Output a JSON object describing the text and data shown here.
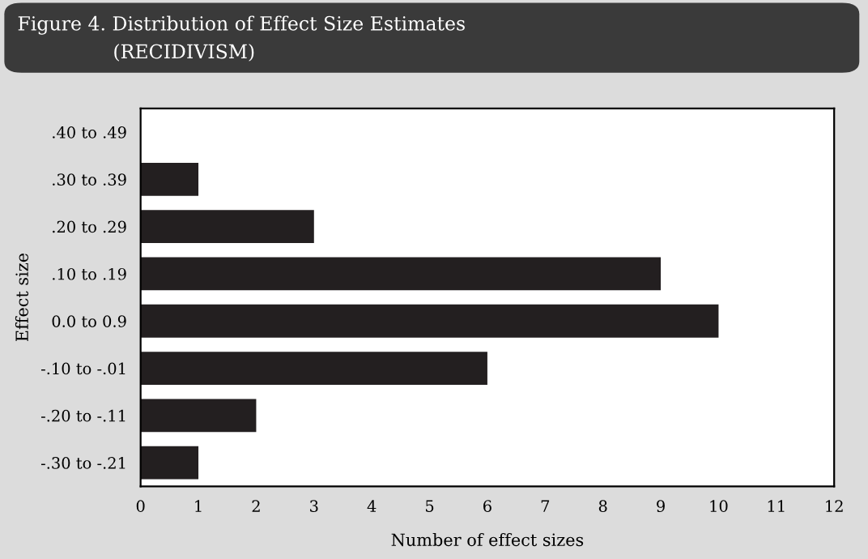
{
  "chart_data": {
    "type": "bar",
    "orientation": "horizontal",
    "title": "Figure 4. Distribution of Effect Size Estimates",
    "subtitle": "(RECIDIVISM)",
    "xlabel": "Number of effect sizes",
    "ylabel": "Effect size",
    "categories": [
      ".40 to .49",
      ".30 to .39",
      ".20 to .29",
      ".10 to .19",
      "0.0 to 0.9",
      "-.10 to -.01",
      "-.20 to -.11",
      "-.30 to -.21"
    ],
    "values": [
      0,
      1,
      3,
      9,
      10,
      6,
      2,
      1
    ],
    "color": "#231f20",
    "xlim": [
      0,
      12
    ],
    "xticks": [
      0,
      1,
      2,
      3,
      4,
      5,
      6,
      7,
      8,
      9,
      10,
      11,
      12
    ],
    "grid": false,
    "legend": false
  }
}
